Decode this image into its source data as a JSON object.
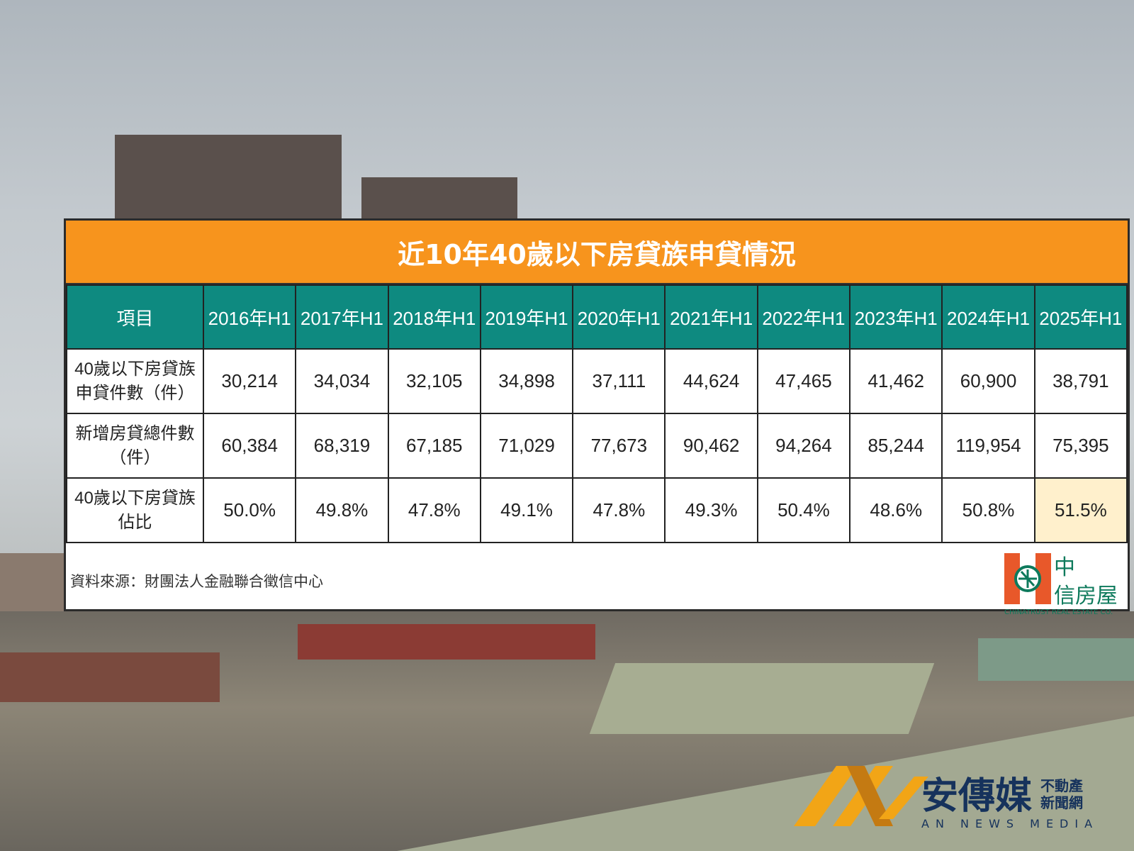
{
  "chart_data": {
    "type": "table",
    "title": "近10年40歲以下房貸族申貸情況",
    "columns": [
      "項目",
      "2016年H1",
      "2017年H1",
      "2018年H1",
      "2019年H1",
      "2020年H1",
      "2021年H1",
      "2022年H1",
      "2023年H1",
      "2024年H1",
      "2025年H1"
    ],
    "rows": [
      {
        "label": "40歲以下房貸族申貸件數（件）",
        "values": [
          "30,214",
          "34,034",
          "32,105",
          "34,898",
          "37,111",
          "44,624",
          "47,465",
          "41,462",
          "60,900",
          "38,791"
        ]
      },
      {
        "label": "新增房貸總件數（件）",
        "values": [
          "60,384",
          "68,319",
          "67,185",
          "71,029",
          "77,673",
          "90,462",
          "94,264",
          "85,244",
          "119,954",
          "75,395"
        ]
      },
      {
        "label": "40歲以下房貸族佔比",
        "values": [
          "50.0%",
          "49.8%",
          "47.8%",
          "49.1%",
          "47.8%",
          "49.3%",
          "50.4%",
          "48.6%",
          "50.8%",
          "51.5%"
        ]
      }
    ],
    "highlight_cell": "40歲以下房貸族佔比 / 2025年H1",
    "source": "資料來源：財團法人金融聯合徵信中心"
  },
  "colors": {
    "title_bg": "#f7941d",
    "header_bg": "#0e8a80",
    "highlight": "#fff0cc"
  },
  "logo": {
    "cn": "中信房屋",
    "en": "CHINATRUST REAL ESTATE CO."
  },
  "watermark": {
    "cn": "安傳媒",
    "sub1": "不動產",
    "sub2": "新聞網",
    "en": "AN NEWS MEDIA"
  }
}
